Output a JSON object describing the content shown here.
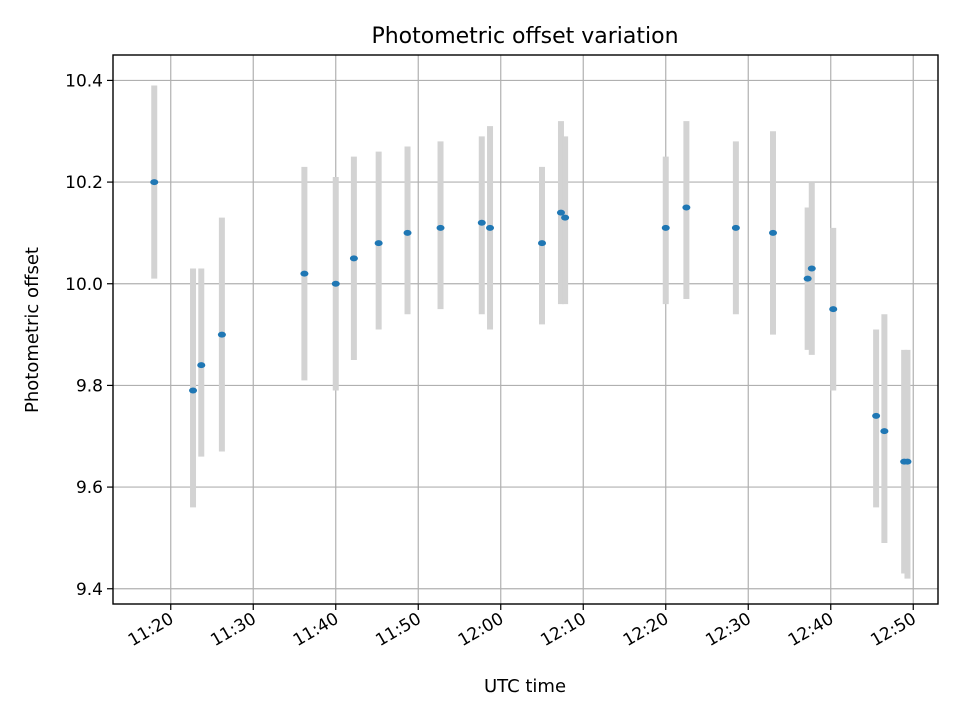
{
  "chart_data": {
    "type": "scatter",
    "title": "Photometric offset variation",
    "xlabel": "UTC time",
    "ylabel": "Photometric offset",
    "xlim": [
      "11:13",
      "12:53"
    ],
    "ylim": [
      9.37,
      10.45
    ],
    "x_ticks": [
      "11:20",
      "11:30",
      "11:40",
      "11:50",
      "12:00",
      "12:10",
      "12:20",
      "12:30",
      "12:40",
      "12:50"
    ],
    "y_ticks": [
      "9.4",
      "9.6",
      "9.8",
      "10.0",
      "10.2",
      "10.4"
    ],
    "grid": true,
    "marker_color": "#1f77b4",
    "errorbar_color": "#d3d3d3",
    "points": [
      {
        "time": "11:18",
        "value": 10.2,
        "err_low": 10.01,
        "err_high": 10.39
      },
      {
        "time": "11:22.7",
        "value": 9.79,
        "err_low": 9.56,
        "err_high": 10.03
      },
      {
        "time": "11:23.7",
        "value": 9.84,
        "err_low": 9.66,
        "err_high": 10.03
      },
      {
        "time": "11:26.2",
        "value": 9.9,
        "err_low": 9.67,
        "err_high": 10.13
      },
      {
        "time": "11:36.2",
        "value": 10.02,
        "err_low": 9.81,
        "err_high": 10.23
      },
      {
        "time": "11:40",
        "value": 10.0,
        "err_low": 9.79,
        "err_high": 10.21
      },
      {
        "time": "11:42.2",
        "value": 10.05,
        "err_low": 9.85,
        "err_high": 10.25
      },
      {
        "time": "11:45.2",
        "value": 10.08,
        "err_low": 9.91,
        "err_high": 10.26
      },
      {
        "time": "11:48.7",
        "value": 10.1,
        "err_low": 9.94,
        "err_high": 10.27
      },
      {
        "time": "11:52.7",
        "value": 10.11,
        "err_low": 9.95,
        "err_high": 10.28
      },
      {
        "time": "11:57.7",
        "value": 10.12,
        "err_low": 9.94,
        "err_high": 10.29
      },
      {
        "time": "11:58.7",
        "value": 10.11,
        "err_low": 9.91,
        "err_high": 10.31
      },
      {
        "time": "12:05",
        "value": 10.08,
        "err_low": 9.92,
        "err_high": 10.23
      },
      {
        "time": "12:07.3",
        "value": 10.14,
        "err_low": 9.96,
        "err_high": 10.32
      },
      {
        "time": "12:07.8",
        "value": 10.13,
        "err_low": 9.96,
        "err_high": 10.29
      },
      {
        "time": "12:20",
        "value": 10.11,
        "err_low": 9.96,
        "err_high": 10.25
      },
      {
        "time": "12:22.5",
        "value": 10.15,
        "err_low": 9.97,
        "err_high": 10.32
      },
      {
        "time": "12:28.5",
        "value": 10.11,
        "err_low": 9.94,
        "err_high": 10.28
      },
      {
        "time": "12:33",
        "value": 10.1,
        "err_low": 9.9,
        "err_high": 10.3
      },
      {
        "time": "12:37.2",
        "value": 10.01,
        "err_low": 9.87,
        "err_high": 10.15
      },
      {
        "time": "12:37.7",
        "value": 10.03,
        "err_low": 9.86,
        "err_high": 10.2
      },
      {
        "time": "12:40.3",
        "value": 9.95,
        "err_low": 9.79,
        "err_high": 10.11
      },
      {
        "time": "12:45.5",
        "value": 9.74,
        "err_low": 9.56,
        "err_high": 9.91
      },
      {
        "time": "12:46.5",
        "value": 9.71,
        "err_low": 9.49,
        "err_high": 9.94
      },
      {
        "time": "12:48.9",
        "value": 9.65,
        "err_low": 9.43,
        "err_high": 9.87
      },
      {
        "time": "12:49.3",
        "value": 9.65,
        "err_low": 9.42,
        "err_high": 9.87
      }
    ]
  }
}
